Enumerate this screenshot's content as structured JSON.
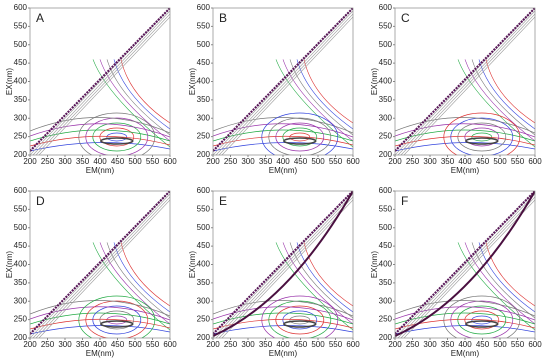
{
  "chart_data": [
    {
      "type": "contour",
      "title": "A",
      "xlabel": "EM(nm)",
      "ylabel": "EX(nm)",
      "xlim": [
        200,
        600
      ],
      "ylim": [
        200,
        600
      ],
      "xticks": [
        200,
        250,
        300,
        350,
        400,
        450,
        500,
        550,
        600
      ],
      "yticks": [
        200,
        250,
        300,
        350,
        400,
        450,
        500,
        550,
        600
      ]
    },
    {
      "type": "contour",
      "title": "B",
      "xlabel": "EM(nm)",
      "ylabel": "EX(nm)",
      "xlim": [
        200,
        600
      ],
      "ylim": [
        200,
        600
      ],
      "xticks": [
        200,
        250,
        300,
        350,
        400,
        450,
        500,
        550,
        600
      ],
      "yticks": [
        200,
        250,
        300,
        350,
        400,
        450,
        500,
        550,
        600
      ]
    },
    {
      "type": "contour",
      "title": "C",
      "xlabel": "EM(nm)",
      "ylabel": "EX(nm)",
      "xlim": [
        200,
        600
      ],
      "ylim": [
        200,
        600
      ],
      "xticks": [
        200,
        250,
        300,
        350,
        400,
        450,
        500,
        550,
        600
      ],
      "yticks": [
        200,
        250,
        300,
        350,
        400,
        450,
        500,
        550,
        600
      ]
    },
    {
      "type": "contour",
      "title": "D",
      "xlabel": "EM(nm)",
      "ylabel": "EX(nm)",
      "xlim": [
        200,
        600
      ],
      "ylim": [
        200,
        600
      ],
      "xticks": [
        200,
        250,
        300,
        350,
        400,
        450,
        500,
        550,
        600
      ],
      "yticks": [
        200,
        250,
        300,
        350,
        400,
        450,
        500,
        550,
        600
      ]
    },
    {
      "type": "contour",
      "title": "E",
      "xlabel": "EM(nm)",
      "ylabel": "EX(nm)",
      "xlim": [
        200,
        600
      ],
      "ylim": [
        200,
        600
      ],
      "xticks": [
        200,
        250,
        300,
        350,
        400,
        450,
        500,
        550,
        600
      ],
      "yticks": [
        200,
        250,
        300,
        350,
        400,
        450,
        500,
        550,
        600
      ]
    },
    {
      "type": "contour",
      "title": "F",
      "xlabel": "EM(nm)",
      "ylabel": "EX(nm)",
      "xlim": [
        200,
        600
      ],
      "ylim": [
        200,
        600
      ],
      "xticks": [
        200,
        250,
        300,
        350,
        400,
        450,
        500,
        550,
        600
      ],
      "yticks": [
        200,
        250,
        300,
        350,
        400,
        450,
        500,
        550,
        600
      ]
    }
  ]
}
